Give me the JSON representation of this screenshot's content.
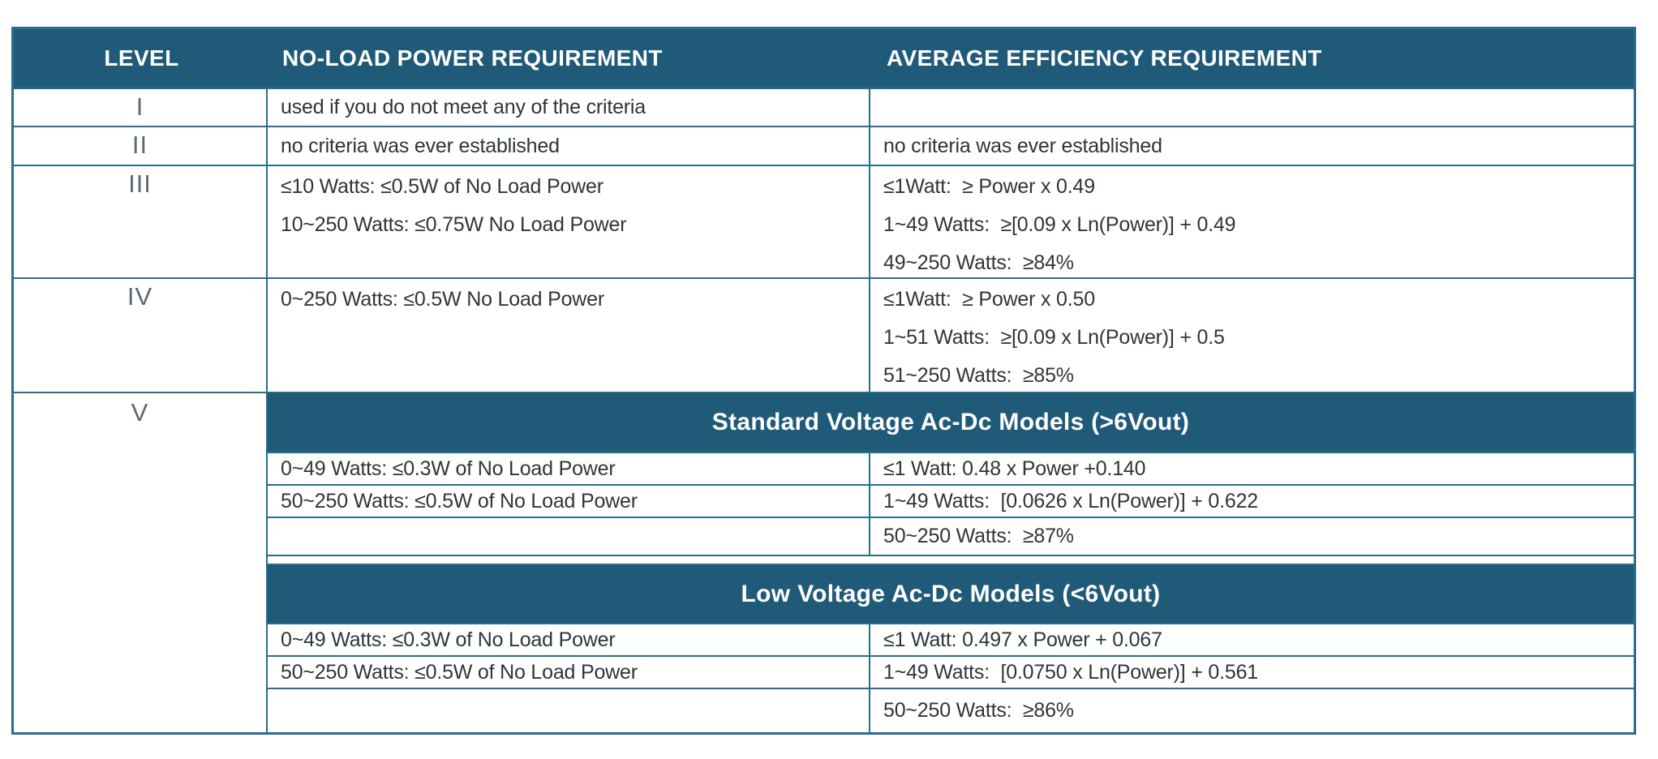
{
  "colors": {
    "teal": "#205a79",
    "line": "#2a6d8d",
    "text": "#2f3539",
    "muted": "#5d6a73",
    "bg": "#ffffff"
  },
  "header": {
    "level": "LEVEL",
    "no_load": "NO-LOAD POWER REQUIREMENT",
    "efficiency": "AVERAGE EFFICIENCY REQUIREMENT"
  },
  "rows": [
    {
      "level": "I",
      "no_load": [
        "used if you do not meet any of the criteria"
      ],
      "efficiency": []
    },
    {
      "level": "II",
      "no_load": [
        "no criteria was ever established"
      ],
      "efficiency": [
        "no criteria was ever established"
      ]
    },
    {
      "level": "III",
      "no_load": [
        "≤10 Watts: ≤0.5W of No Load Power",
        "10~250 Watts: ≤0.75W No Load Power"
      ],
      "efficiency": [
        "≤1Watt:  ≥ Power x 0.49",
        "1~49 Watts:  ≥[0.09 x Ln(Power)] + 0.49",
        "49~250 Watts:  ≥84%"
      ]
    },
    {
      "level": "IV",
      "no_load": [
        "0~250 Watts: ≤0.5W No Load Power"
      ],
      "efficiency": [
        "≤1Watt:  ≥ Power x 0.50",
        "1~51 Watts:  ≥[0.09 x Ln(Power)] + 0.5",
        "51~250 Watts:  ≥85%"
      ]
    }
  ],
  "level5": {
    "level": "V",
    "sections": [
      {
        "title": "Standard Voltage Ac-Dc Models (>6Vout)",
        "rows": [
          {
            "no_load": "0~49 Watts: ≤0.3W of No Load Power",
            "efficiency": "≤1 Watt: 0.48 x Power +0.140"
          },
          {
            "no_load": "50~250 Watts: ≤0.5W of No Load Power",
            "efficiency": "1~49 Watts:  [0.0626 x Ln(Power)] + 0.622"
          },
          {
            "no_load": "",
            "efficiency": "50~250 Watts:  ≥87%"
          }
        ]
      },
      {
        "title": "Low Voltage Ac-Dc Models (<6Vout)",
        "rows": [
          {
            "no_load": "0~49 Watts: ≤0.3W of No Load Power",
            "efficiency": "≤1 Watt: 0.497 x Power + 0.067"
          },
          {
            "no_load": "50~250 Watts: ≤0.5W of No Load Power",
            "efficiency": "1~49 Watts:  [0.0750 x Ln(Power)] + 0.561"
          },
          {
            "no_load": "",
            "efficiency": "50~250 Watts:  ≥86%"
          }
        ]
      }
    ]
  }
}
